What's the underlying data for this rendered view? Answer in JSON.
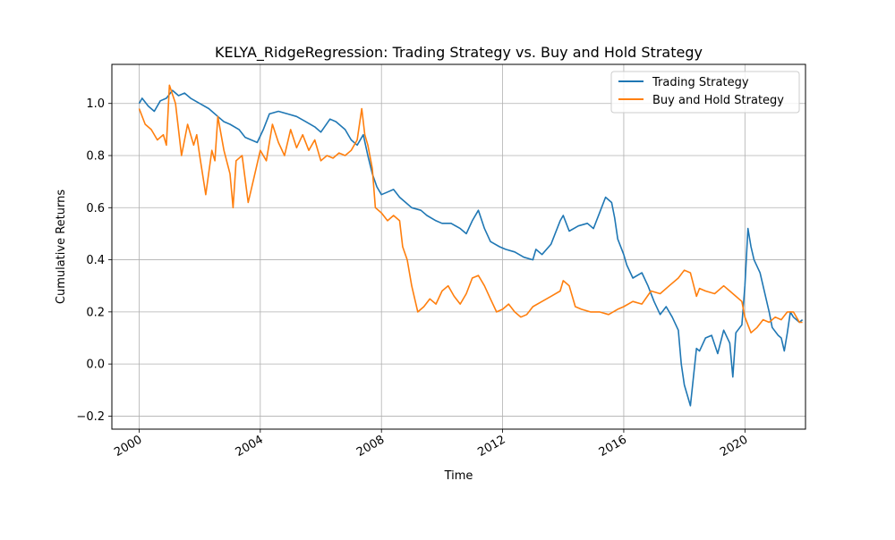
{
  "chart_data": {
    "type": "line",
    "title": "KELYA_RidgeRegression: Trading Strategy vs. Buy and Hold Strategy",
    "xlabel": "Time",
    "ylabel": "Cumulative Returns",
    "xlim": [
      1999.1,
      2022.0
    ],
    "ylim": [
      -0.25,
      1.15
    ],
    "xticks": [
      2000,
      2004,
      2008,
      2012,
      2016,
      2020
    ],
    "xtick_labels": [
      "2000",
      "2004",
      "2008",
      "2012",
      "2016",
      "2020"
    ],
    "yticks": [
      -0.2,
      0.0,
      0.2,
      0.4,
      0.6,
      0.8,
      1.0
    ],
    "ytick_labels": [
      "−0.2",
      "0.0",
      "0.2",
      "0.4",
      "0.6",
      "0.8",
      "1.0"
    ],
    "grid": true,
    "legend_position": "top-right",
    "series": [
      {
        "name": "Trading Strategy",
        "color": "#1f77b4",
        "x": [
          2000.0,
          2000.1,
          2000.3,
          2000.5,
          2000.7,
          2000.9,
          2001.1,
          2001.3,
          2001.5,
          2001.7,
          2002.0,
          2002.3,
          2002.6,
          2002.8,
          2003.0,
          2003.3,
          2003.5,
          2003.7,
          2003.9,
          2004.1,
          2004.3,
          2004.6,
          2004.9,
          2005.2,
          2005.5,
          2005.8,
          2006.0,
          2006.3,
          2006.5,
          2006.8,
          2007.0,
          2007.2,
          2007.4,
          2007.55,
          2007.7,
          2007.85,
          2008.0,
          2008.2,
          2008.4,
          2008.6,
          2008.8,
          2009.0,
          2009.3,
          2009.5,
          2009.8,
          2010.0,
          2010.3,
          2010.6,
          2010.8,
          2011.0,
          2011.2,
          2011.4,
          2011.6,
          2011.9,
          2012.1,
          2012.4,
          2012.7,
          2013.0,
          2013.1,
          2013.3,
          2013.6,
          2013.9,
          2014.0,
          2014.2,
          2014.5,
          2014.8,
          2015.0,
          2015.2,
          2015.4,
          2015.6,
          2015.7,
          2015.8,
          2016.0,
          2016.1,
          2016.3,
          2016.6,
          2016.8,
          2017.0,
          2017.2,
          2017.4,
          2017.6,
          2017.8,
          2017.9,
          2018.0,
          2018.1,
          2018.2,
          2018.3,
          2018.4,
          2018.5,
          2018.7,
          2018.9,
          2019.1,
          2019.3,
          2019.5,
          2019.6,
          2019.7,
          2019.9,
          2020.0,
          2020.1,
          2020.2,
          2020.3,
          2020.5,
          2020.7,
          2020.8,
          2020.9,
          2021.1,
          2021.2,
          2021.3,
          2021.4,
          2021.5,
          2021.6,
          2021.8,
          2021.9
        ],
        "y": [
          1.0,
          1.02,
          0.99,
          0.97,
          1.01,
          1.02,
          1.05,
          1.03,
          1.04,
          1.02,
          1.0,
          0.98,
          0.95,
          0.93,
          0.92,
          0.9,
          0.87,
          0.86,
          0.85,
          0.9,
          0.96,
          0.97,
          0.96,
          0.95,
          0.93,
          0.91,
          0.89,
          0.94,
          0.93,
          0.9,
          0.86,
          0.84,
          0.88,
          0.8,
          0.73,
          0.68,
          0.65,
          0.66,
          0.67,
          0.64,
          0.62,
          0.6,
          0.59,
          0.57,
          0.55,
          0.54,
          0.54,
          0.52,
          0.5,
          0.55,
          0.59,
          0.52,
          0.47,
          0.45,
          0.44,
          0.43,
          0.41,
          0.4,
          0.44,
          0.42,
          0.46,
          0.55,
          0.57,
          0.51,
          0.53,
          0.54,
          0.52,
          0.58,
          0.64,
          0.62,
          0.56,
          0.48,
          0.42,
          0.38,
          0.33,
          0.35,
          0.3,
          0.24,
          0.19,
          0.22,
          0.18,
          0.13,
          0.0,
          -0.08,
          -0.12,
          -0.16,
          -0.05,
          0.06,
          0.05,
          0.1,
          0.11,
          0.04,
          0.13,
          0.08,
          -0.05,
          0.12,
          0.15,
          0.3,
          0.52,
          0.45,
          0.4,
          0.35,
          0.25,
          0.2,
          0.14,
          0.11,
          0.1,
          0.05,
          0.12,
          0.2,
          0.18,
          0.16,
          0.17
        ]
      },
      {
        "name": "Buy and Hold Strategy",
        "color": "#ff7f0e",
        "x": [
          2000.0,
          2000.2,
          2000.4,
          2000.6,
          2000.8,
          2000.9,
          2001.0,
          2001.2,
          2001.4,
          2001.6,
          2001.8,
          2001.9,
          2002.0,
          2002.2,
          2002.4,
          2002.5,
          2002.6,
          2002.8,
          2003.0,
          2003.1,
          2003.2,
          2003.4,
          2003.6,
          2003.8,
          2004.0,
          2004.2,
          2004.4,
          2004.6,
          2004.8,
          2005.0,
          2005.2,
          2005.4,
          2005.6,
          2005.8,
          2006.0,
          2006.2,
          2006.4,
          2006.6,
          2006.8,
          2007.0,
          2007.2,
          2007.35,
          2007.45,
          2007.55,
          2007.7,
          2007.8,
          2008.0,
          2008.2,
          2008.4,
          2008.6,
          2008.7,
          2008.85,
          2009.0,
          2009.2,
          2009.4,
          2009.6,
          2009.8,
          2010.0,
          2010.2,
          2010.4,
          2010.6,
          2010.8,
          2011.0,
          2011.2,
          2011.4,
          2011.6,
          2011.8,
          2012.0,
          2012.2,
          2012.4,
          2012.6,
          2012.8,
          2013.0,
          2013.3,
          2013.6,
          2013.9,
          2014.0,
          2014.2,
          2014.4,
          2014.6,
          2014.9,
          2015.2,
          2015.5,
          2015.8,
          2016.0,
          2016.3,
          2016.6,
          2016.9,
          2017.2,
          2017.5,
          2017.8,
          2018.0,
          2018.2,
          2018.4,
          2018.5,
          2018.7,
          2019.0,
          2019.3,
          2019.5,
          2019.7,
          2019.9,
          2020.0,
          2020.1,
          2020.2,
          2020.4,
          2020.6,
          2020.8,
          2021.0,
          2021.2,
          2021.4,
          2021.6,
          2021.8,
          2021.9
        ],
        "y": [
          0.98,
          0.92,
          0.9,
          0.86,
          0.88,
          0.84,
          1.07,
          1.0,
          0.8,
          0.92,
          0.84,
          0.88,
          0.8,
          0.65,
          0.82,
          0.78,
          0.95,
          0.82,
          0.73,
          0.6,
          0.78,
          0.8,
          0.62,
          0.72,
          0.82,
          0.78,
          0.92,
          0.85,
          0.8,
          0.9,
          0.83,
          0.88,
          0.82,
          0.86,
          0.78,
          0.8,
          0.79,
          0.81,
          0.8,
          0.82,
          0.86,
          0.98,
          0.88,
          0.84,
          0.75,
          0.6,
          0.58,
          0.55,
          0.57,
          0.55,
          0.45,
          0.4,
          0.3,
          0.2,
          0.22,
          0.25,
          0.23,
          0.28,
          0.3,
          0.26,
          0.23,
          0.27,
          0.33,
          0.34,
          0.3,
          0.25,
          0.2,
          0.21,
          0.23,
          0.2,
          0.18,
          0.19,
          0.22,
          0.24,
          0.26,
          0.28,
          0.32,
          0.3,
          0.22,
          0.21,
          0.2,
          0.2,
          0.19,
          0.21,
          0.22,
          0.24,
          0.23,
          0.28,
          0.27,
          0.3,
          0.33,
          0.36,
          0.35,
          0.26,
          0.29,
          0.28,
          0.27,
          0.3,
          0.28,
          0.26,
          0.24,
          0.18,
          0.15,
          0.12,
          0.14,
          0.17,
          0.16,
          0.18,
          0.17,
          0.2,
          0.2,
          0.16,
          0.16
        ]
      }
    ]
  }
}
